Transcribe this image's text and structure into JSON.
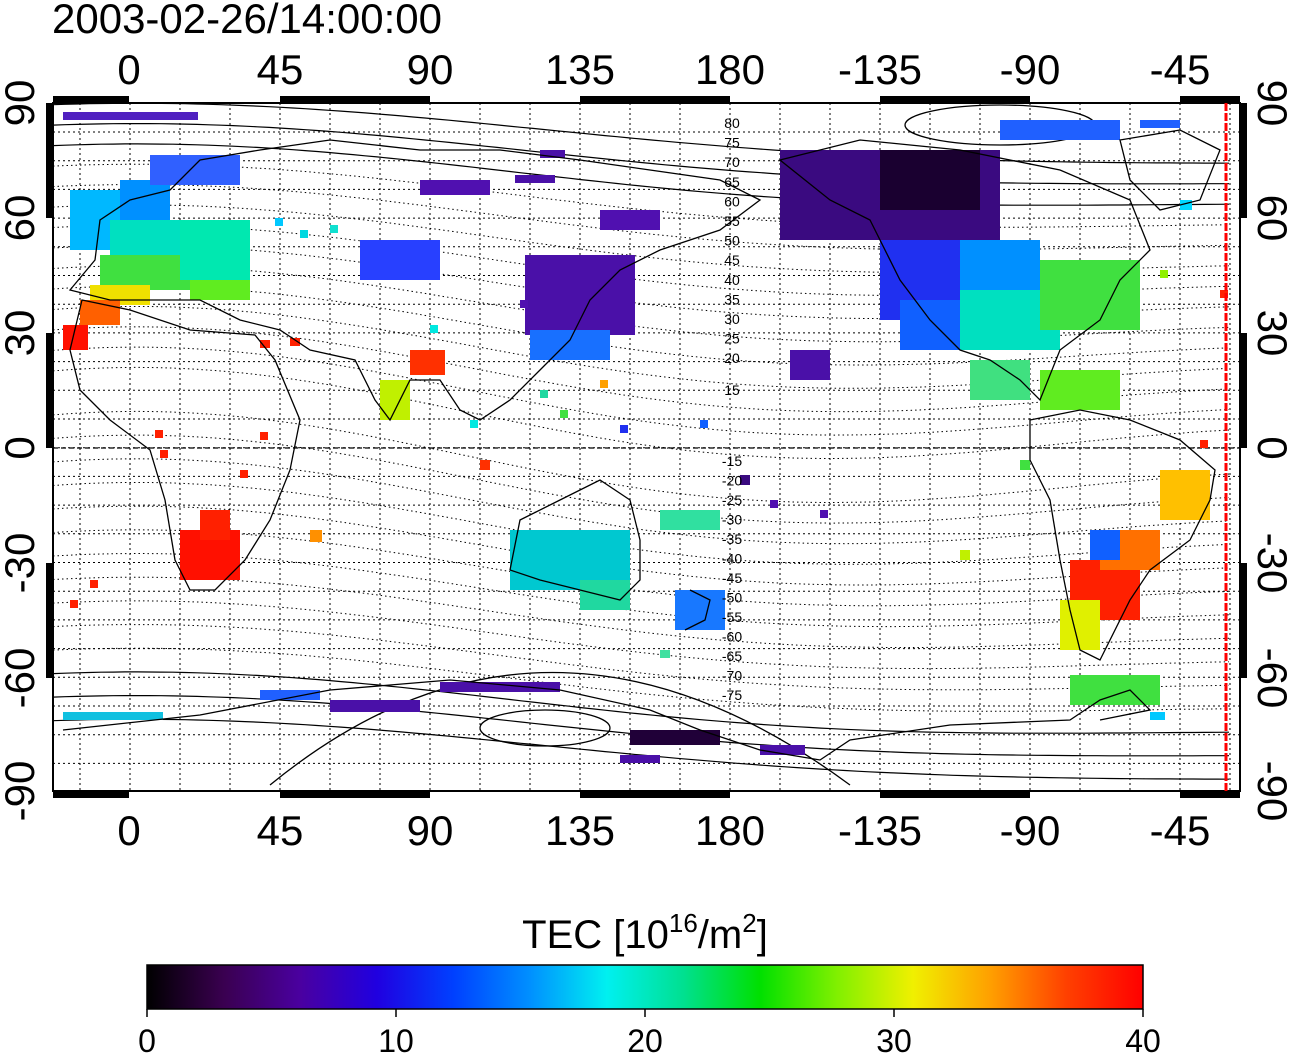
{
  "map": {
    "timestamp": "2003-02-26/14:00:00",
    "lon_ticks": [
      "0",
      "45",
      "90",
      "135",
      "180",
      "-135",
      "-90",
      "-45"
    ],
    "lat_ticks": [
      "90",
      "60",
      "30",
      "0",
      "-30",
      "-60",
      "-90"
    ],
    "contour_labels_north": [
      "80",
      "75",
      "70",
      "65",
      "60",
      "55",
      "50",
      "45",
      "40",
      "35",
      "30",
      "25",
      "20",
      "15"
    ],
    "contour_labels_south": [
      "-15",
      "-20",
      "-25",
      "-30",
      "-35",
      "-40",
      "-45",
      "-50",
      "-55",
      "-60",
      "-65",
      "-70",
      "-75"
    ]
  },
  "colorbar": {
    "title_prefix": "TEC  [10",
    "title_exp1": "16",
    "title_mid": "/m",
    "title_exp2": "2",
    "title_suffix": "]",
    "tick_labels": [
      "0",
      "10",
      "20",
      "30",
      "40"
    ],
    "colors": [
      "#000000",
      "#3a0050",
      "#4a00a0",
      "#2000e0",
      "#0040ff",
      "#0090ff",
      "#00f0f0",
      "#00e090",
      "#00e000",
      "#80f000",
      "#f0f000",
      "#ffa000",
      "#ff4000",
      "#ff0000"
    ]
  }
}
